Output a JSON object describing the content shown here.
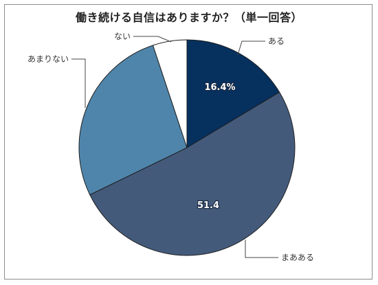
{
  "chart_data": {
    "type": "pie",
    "title": "働き続ける自信はありますか？（単一回答）",
    "slices": [
      {
        "name": "ある",
        "value": 16.4,
        "data_label": "16.4%",
        "color": "#06305e"
      },
      {
        "name": "まあある",
        "value": 51.4,
        "data_label": "51.4",
        "color": "#435a7b"
      },
      {
        "name": "あまりない",
        "value": 27.1,
        "data_label": "",
        "color": "#4f85ab"
      },
      {
        "name": "ない",
        "value": 5.1,
        "data_label": "",
        "color": "#ffffff"
      }
    ],
    "legend": "none"
  }
}
